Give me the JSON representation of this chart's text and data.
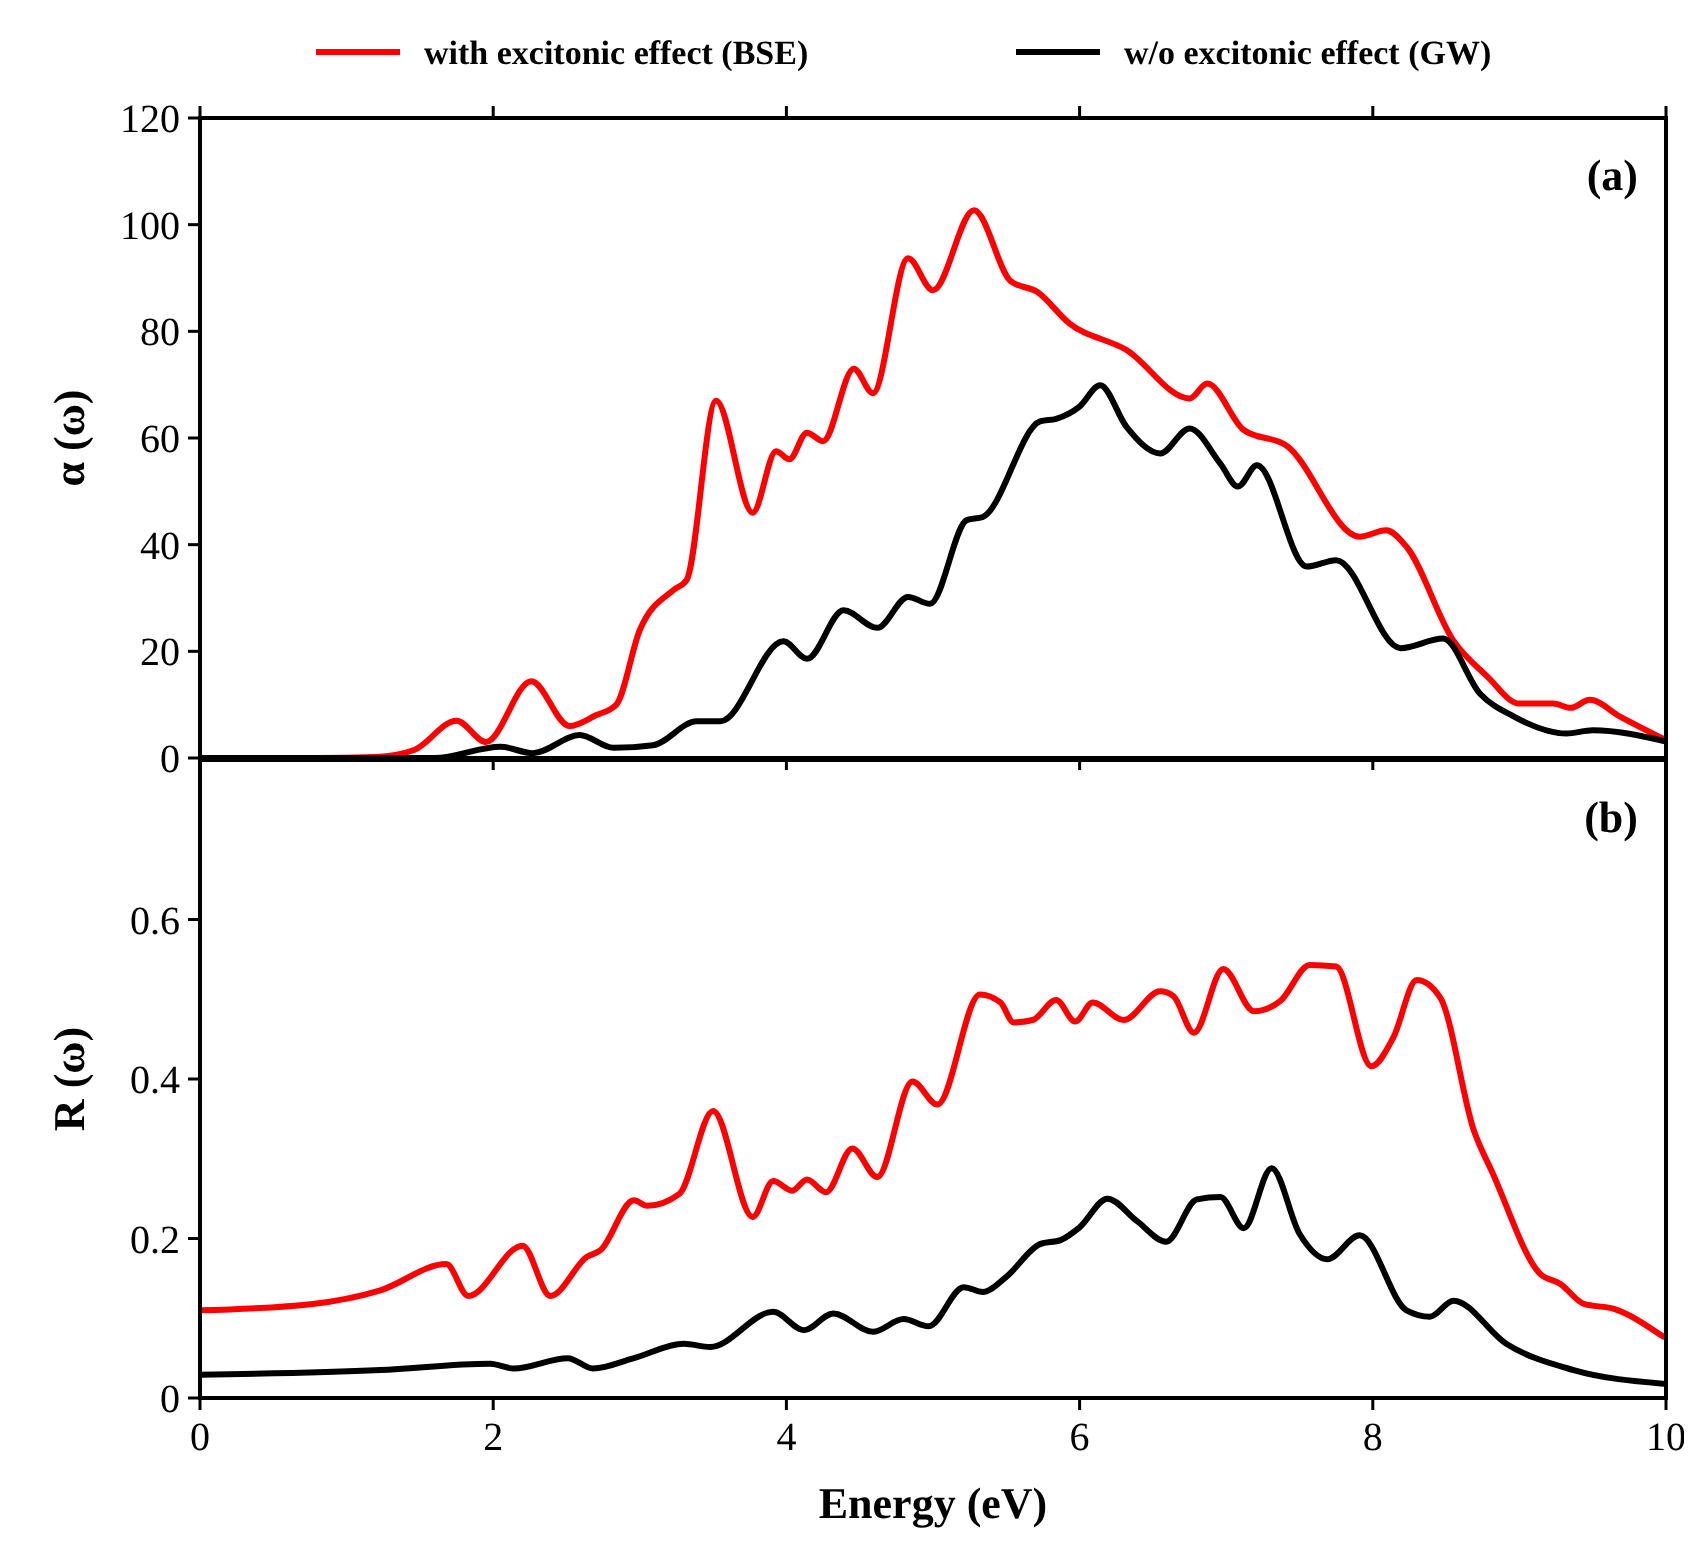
{
  "chart_data": [
    {
      "type": "line",
      "ylabel": "α (ω)",
      "annotations": [
        "(a)"
      ],
      "legend": "top",
      "tick_labels": "y",
      "xlim": [
        0,
        10
      ],
      "xticks": [
        0,
        2,
        4,
        6,
        8,
        10
      ],
      "ylim": [
        0,
        120
      ],
      "yticks": [
        0,
        20,
        40,
        60,
        80,
        100,
        120
      ],
      "marker": "none",
      "line_style": "solid",
      "series": [
        {
          "name": "with excitonic effect (BSE)",
          "color": "#ff0000",
          "x": [
            0,
            0.8,
            1.2,
            1.46,
            1.75,
            1.95,
            2.26,
            2.52,
            2.7,
            2.84,
            3.0,
            3.23,
            3.32,
            3.52,
            3.77,
            3.93,
            4.02,
            4.14,
            4.25,
            4.46,
            4.59,
            4.83,
            5.0,
            5.28,
            5.53,
            5.71,
            5.93,
            6.32,
            6.75,
            6.87,
            7.12,
            7.41,
            7.91,
            8.09,
            8.23,
            8.55,
            8.78,
            9.0,
            9.23,
            9.35,
            9.48,
            9.69,
            9.98
          ],
          "values": [
            0,
            0,
            0.2,
            1.5,
            7,
            3,
            14.4,
            6,
            8,
            10,
            24,
            31.5,
            33.4,
            67,
            46,
            57.5,
            56,
            61,
            59.4,
            73,
            68.4,
            93.7,
            87.7,
            102.7,
            89.4,
            87.4,
            81.5,
            76.5,
            67.4,
            70.2,
            61.5,
            58.6,
            41.5,
            42.7,
            39.6,
            22,
            15.3,
            10.2,
            10.2,
            9.4,
            10.9,
            7.7,
            3.6
          ]
        },
        {
          "name": "w/o excitonic effect (GW)",
          "color": "#000000",
          "x": [
            0,
            1.6,
            2.05,
            2.27,
            2.59,
            2.82,
            3.09,
            3.39,
            3.55,
            3.98,
            4.14,
            4.39,
            4.62,
            4.83,
            4.98,
            5.23,
            5.34,
            5.73,
            5.84,
            6.0,
            6.14,
            6.32,
            6.55,
            6.75,
            6.96,
            7.08,
            7.21,
            7.55,
            7.75,
            8.19,
            8.48,
            8.73,
            8.96,
            9.32,
            9.5,
            10
          ],
          "values": [
            0,
            0,
            2.1,
            0.9,
            4.3,
            1.9,
            2.4,
            6.9,
            6.9,
            21.9,
            18.6,
            27.7,
            24.4,
            30.2,
            28.9,
            44.6,
            45.2,
            63.1,
            63.6,
            65.9,
            69.9,
            62.1,
            57.1,
            61.8,
            55.2,
            50.9,
            54.9,
            35.9,
            37.1,
            20.6,
            22.4,
            12.1,
            7.8,
            4.6,
            5.2,
            3.1
          ]
        }
      ]
    },
    {
      "type": "line",
      "xlabel": "Energy (eV)",
      "ylabel": "R (ω)",
      "annotations": [
        "(b)"
      ],
      "xlim": [
        0,
        10
      ],
      "xticks": [
        0,
        2,
        4,
        6,
        8,
        10
      ],
      "ylim": [
        0,
        0.8
      ],
      "yticks": [
        0,
        0.2,
        0.4,
        0.6
      ],
      "marker": "none",
      "line_style": "solid",
      "series": [
        {
          "color": "#ff0000",
          "x": [
            0,
            0.77,
            1.23,
            1.68,
            1.83,
            2.2,
            2.39,
            2.64,
            2.73,
            2.96,
            3.05,
            3.27,
            3.5,
            3.77,
            3.91,
            4.04,
            4.14,
            4.27,
            4.45,
            4.62,
            4.86,
            5.03,
            5.32,
            5.46,
            5.55,
            5.68,
            5.84,
            5.97,
            6.09,
            6.3,
            6.55,
            6.64,
            6.78,
            6.98,
            7.19,
            7.37,
            7.57,
            7.75,
            7.99,
            8.14,
            8.3,
            8.46,
            8.69,
            8.82,
            9.14,
            9.28,
            9.44,
            9.64,
            9.98
          ],
          "values": [
            0.11,
            0.118,
            0.135,
            0.168,
            0.128,
            0.191,
            0.128,
            0.177,
            0.185,
            0.248,
            0.241,
            0.256,
            0.36,
            0.227,
            0.272,
            0.26,
            0.274,
            0.258,
            0.313,
            0.277,
            0.397,
            0.368,
            0.506,
            0.496,
            0.471,
            0.474,
            0.499,
            0.472,
            0.496,
            0.474,
            0.51,
            0.504,
            0.458,
            0.538,
            0.485,
            0.498,
            0.543,
            0.541,
            0.416,
            0.452,
            0.524,
            0.502,
            0.335,
            0.281,
            0.156,
            0.143,
            0.118,
            0.112,
            0.077
          ]
        },
        {
          "color": "#000000",
          "x": [
            0,
            1.23,
            1.98,
            2.14,
            2.51,
            2.68,
            2.96,
            3.3,
            3.48,
            3.91,
            4.12,
            4.32,
            4.59,
            4.8,
            4.97,
            5.21,
            5.34,
            5.5,
            5.73,
            5.87,
            6.0,
            6.19,
            6.39,
            6.59,
            6.8,
            6.96,
            7.12,
            7.31,
            7.5,
            7.69,
            7.91,
            8.23,
            8.39,
            8.55,
            8.91,
            9.37,
            9.98
          ],
          "values": [
            0.029,
            0.035,
            0.043,
            0.037,
            0.05,
            0.037,
            0.05,
            0.068,
            0.064,
            0.108,
            0.085,
            0.106,
            0.083,
            0.099,
            0.09,
            0.139,
            0.133,
            0.152,
            0.193,
            0.198,
            0.214,
            0.25,
            0.222,
            0.196,
            0.249,
            0.252,
            0.213,
            0.288,
            0.206,
            0.174,
            0.204,
            0.11,
            0.102,
            0.122,
            0.068,
            0.035,
            0.018
          ]
        }
      ]
    }
  ]
}
